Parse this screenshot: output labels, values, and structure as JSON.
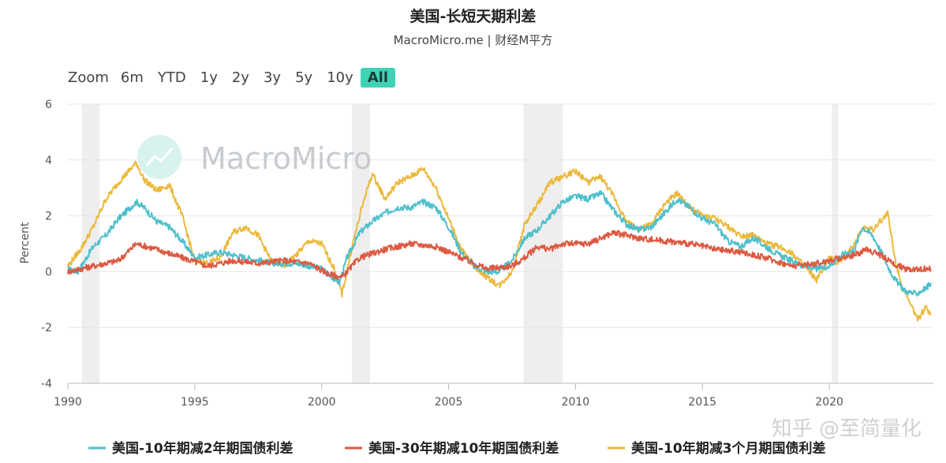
{
  "chart_data": {
    "type": "line",
    "title": "美国-长短天期利差",
    "subtitle": "MacroMicro.me | 财经M平方",
    "ylabel": "Percent",
    "xlabel": "",
    "ylim": [
      -4,
      6
    ],
    "yticks": [
      -4,
      -2,
      0,
      2,
      4,
      6
    ],
    "xlim": [
      1990,
      2024.1
    ],
    "xticks": [
      1990,
      1995,
      2000,
      2005,
      2010,
      2015,
      2020
    ],
    "grid": "horizontal",
    "legend": "bottom",
    "recessions": [
      [
        1990.55,
        1991.25
      ],
      [
        2001.2,
        2001.9
      ],
      [
        2007.95,
        2009.5
      ],
      [
        2020.1,
        2020.35
      ]
    ],
    "series": [
      {
        "name": "美国-10年期减2年期国债利差",
        "color": "#4fbfcc",
        "x": [
          1990.0,
          1990.4,
          1991.0,
          1991.5,
          1992.0,
          1992.7,
          1993.0,
          1993.5,
          1994.0,
          1994.5,
          1995.0,
          1995.5,
          1996.0,
          1997.0,
          1998.0,
          1999.0,
          2000.0,
          2000.7,
          2001.0,
          2001.5,
          2002.0,
          2002.5,
          2003.0,
          2003.5,
          2004.0,
          2004.5,
          2005.0,
          2005.5,
          2006.0,
          2006.5,
          2007.0,
          2007.5,
          2008.0,
          2008.5,
          2009.0,
          2009.5,
          2010.0,
          2010.5,
          2011.0,
          2011.5,
          2012.0,
          2012.5,
          2013.0,
          2013.5,
          2014.0,
          2014.5,
          2015.0,
          2015.5,
          2016.0,
          2016.5,
          2017.0,
          2017.5,
          2018.0,
          2018.5,
          2019.0,
          2019.5,
          2020.0,
          2020.5,
          2021.0,
          2021.3,
          2021.7,
          2022.0,
          2022.3,
          2022.6,
          2023.0,
          2023.4,
          2023.8,
          2024.0
        ],
        "y": [
          0.1,
          0.0,
          0.9,
          1.3,
          1.9,
          2.5,
          2.3,
          1.8,
          1.6,
          1.1,
          0.5,
          0.6,
          0.7,
          0.5,
          0.3,
          0.3,
          0.1,
          -0.4,
          0.5,
          1.4,
          1.8,
          2.1,
          2.3,
          2.3,
          2.5,
          2.3,
          1.6,
          0.7,
          0.2,
          0.0,
          0.0,
          0.4,
          1.2,
          1.5,
          2.0,
          2.5,
          2.7,
          2.6,
          2.8,
          2.2,
          1.7,
          1.5,
          1.6,
          2.1,
          2.6,
          2.3,
          1.9,
          1.7,
          1.1,
          0.9,
          1.2,
          0.9,
          0.6,
          0.4,
          0.2,
          0.1,
          0.2,
          0.6,
          0.8,
          1.6,
          1.3,
          0.8,
          0.2,
          -0.3,
          -0.7,
          -0.8,
          -0.6,
          -0.4
        ]
      },
      {
        "name": "美国-30年期减10年期国债利差",
        "color": "#dc5a42",
        "x": [
          1990.0,
          1991.0,
          1992.0,
          1992.7,
          1993.5,
          1994.5,
          1995.5,
          1996.5,
          1997.5,
          1998.5,
          1999.5,
          2000.3,
          2000.8,
          2001.5,
          2002.5,
          2003.5,
          2004.5,
          2005.5,
          2006.5,
          2007.5,
          2008.0,
          2008.5,
          2009.0,
          2009.5,
          2010.5,
          2011.0,
          2011.5,
          2012.5,
          2013.5,
          2014.5,
          2015.5,
          2016.5,
          2017.5,
          2018.5,
          2019.5,
          2020.5,
          2021.0,
          2021.5,
          2022.0,
          2022.5,
          2023.0,
          2023.5,
          2024.0
        ],
        "y": [
          0.0,
          0.2,
          0.4,
          1.0,
          0.8,
          0.5,
          0.2,
          0.4,
          0.3,
          0.4,
          0.3,
          -0.1,
          -0.2,
          0.5,
          0.8,
          1.0,
          0.9,
          0.5,
          0.1,
          0.2,
          0.5,
          0.9,
          0.8,
          1.0,
          1.0,
          1.2,
          1.4,
          1.2,
          1.1,
          1.0,
          0.8,
          0.7,
          0.5,
          0.2,
          0.3,
          0.5,
          0.6,
          0.8,
          0.6,
          0.3,
          0.1,
          0.1,
          0.1
        ]
      },
      {
        "name": "美国-10年期减3个月期国债利差",
        "color": "#ebb93c",
        "x": [
          1990.0,
          1990.5,
          1991.0,
          1991.5,
          1992.0,
          1992.7,
          1993.0,
          1993.5,
          1994.0,
          1994.5,
          1995.0,
          1995.5,
          1996.0,
          1996.5,
          1997.0,
          1997.5,
          1998.0,
          1998.5,
          1999.0,
          1999.5,
          2000.0,
          2000.5,
          2000.8,
          2001.2,
          2001.7,
          2002.0,
          2002.5,
          2003.0,
          2003.5,
          2004.0,
          2004.5,
          2005.0,
          2005.5,
          2006.0,
          2006.5,
          2007.0,
          2007.5,
          2008.0,
          2008.5,
          2009.0,
          2009.5,
          2010.0,
          2010.5,
          2011.0,
          2011.5,
          2012.0,
          2012.5,
          2013.0,
          2013.5,
          2014.0,
          2014.5,
          2015.0,
          2015.5,
          2016.0,
          2016.5,
          2017.0,
          2017.5,
          2018.0,
          2018.5,
          2019.0,
          2019.5,
          2020.0,
          2020.3,
          2020.7,
          2021.0,
          2021.3,
          2021.7,
          2022.0,
          2022.3,
          2022.6,
          2022.9,
          2023.2,
          2023.5,
          2023.8,
          2024.0
        ],
        "y": [
          0.2,
          0.8,
          1.6,
          2.6,
          3.2,
          3.9,
          3.3,
          2.9,
          3.1,
          2.0,
          0.4,
          0.3,
          0.5,
          1.4,
          1.6,
          1.3,
          0.4,
          0.2,
          0.6,
          1.1,
          1.0,
          0.1,
          -0.8,
          0.9,
          2.7,
          3.5,
          2.6,
          3.2,
          3.4,
          3.7,
          3.0,
          1.9,
          0.8,
          0.2,
          -0.2,
          -0.5,
          0.0,
          1.7,
          2.4,
          3.2,
          3.4,
          3.6,
          3.2,
          3.4,
          2.7,
          1.8,
          1.5,
          1.7,
          2.4,
          2.8,
          2.3,
          2.0,
          1.9,
          1.6,
          1.3,
          1.3,
          1.0,
          0.9,
          0.7,
          0.2,
          -0.3,
          0.5,
          0.3,
          0.6,
          1.0,
          1.6,
          1.5,
          1.8,
          2.1,
          0.4,
          -0.6,
          -1.2,
          -1.7,
          -1.3,
          -1.5
        ]
      }
    ]
  },
  "zoom": {
    "label": "Zoom",
    "options": [
      "6m",
      "YTD",
      "1y",
      "2y",
      "3y",
      "5y",
      "10y",
      "All"
    ],
    "active": "All"
  },
  "watermark": {
    "brand": "MacroMicro",
    "corner": "知乎 @至简量化"
  }
}
